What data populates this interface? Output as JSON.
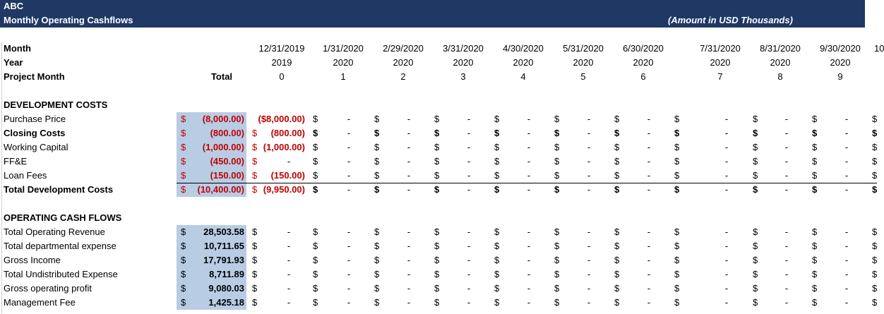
{
  "header": {
    "company": "ABC",
    "title": "Monthly Operating Cashflows",
    "units": "(Amount in USD Thousands)"
  },
  "symbols": {
    "currency": "$",
    "nil": "-"
  },
  "table": {
    "row_labels": [
      "Month",
      "Year",
      "Project Month"
    ],
    "total_label": "Total",
    "columns": [
      {
        "month": "12/31/2019",
        "year": 2019,
        "project_month": 0
      },
      {
        "month": "1/31/2020",
        "year": 2020,
        "project_month": 1
      },
      {
        "month": "2/29/2020",
        "year": 2020,
        "project_month": 2
      },
      {
        "month": "3/31/2020",
        "year": 2020,
        "project_month": 3
      },
      {
        "month": "4/30/2020",
        "year": 2020,
        "project_month": 4
      },
      {
        "month": "5/31/2020",
        "year": 2020,
        "project_month": 5
      },
      {
        "month": "6/30/2020",
        "year": 2020,
        "project_month": 6
      },
      {
        "month": "7/31/2020",
        "year": 2020,
        "project_month": 7
      },
      {
        "month": "8/31/2020",
        "year": 2020,
        "project_month": 8
      },
      {
        "month": "9/30/2020",
        "year": 2020,
        "project_month": 9
      },
      {
        "month": "10"
      }
    ],
    "sections": [
      {
        "title": "DEVELOPMENT COSTS",
        "value_color": "#c00000",
        "rows": [
          {
            "label": "Purchase Price",
            "total": [
              "$",
              "(8,000.00)"
            ],
            "first": [
              "($8,000.00)"
            ]
          },
          {
            "label": "Closing Costs",
            "bold": true,
            "total": [
              "$",
              "(800.00)"
            ],
            "first": [
              "$",
              "(800.00)"
            ]
          },
          {
            "label": "Working Capital",
            "total": [
              "$",
              "(1,000.00)"
            ],
            "first": [
              "$",
              "(1,000.00)"
            ]
          },
          {
            "label": "FF&E",
            "total": [
              "$",
              "(450.00)"
            ],
            "first": [
              "$",
              "-"
            ]
          },
          {
            "label": "Loan Fees",
            "total": [
              "$",
              "(150.00)"
            ],
            "first": [
              "$",
              "(150.00)"
            ]
          },
          {
            "label": "Total Development Costs",
            "bold": true,
            "rule_above": true,
            "total": [
              "$",
              "(10,400.00)"
            ],
            "first": [
              "$",
              "(9,950.00)"
            ]
          }
        ]
      },
      {
        "title": "OPERATING CASH FLOWS",
        "value_color": "#000000",
        "rows": [
          {
            "label": "Total Operating Revenue",
            "total": [
              "$",
              "28,503.58"
            ],
            "first": [
              "$",
              "-"
            ]
          },
          {
            "label": "Total departmental expense",
            "total": [
              "$",
              "10,711.65"
            ],
            "first": [
              "$",
              "-"
            ]
          },
          {
            "label": "Gross Income",
            "total": [
              "$",
              "17,791.93"
            ],
            "first": [
              "$",
              "-"
            ]
          },
          {
            "label": "Total Undistributed Expense",
            "total": [
              "$",
              "8,711.89"
            ],
            "first": [
              "$",
              "-"
            ]
          },
          {
            "label": "Gross operating profit",
            "total": [
              "$",
              "9,080.03"
            ],
            "first": [
              "$",
              "-"
            ]
          },
          {
            "label": "Management Fee",
            "total": [
              "$",
              "1,425.18"
            ],
            "first": [
              "$",
              "-"
            ]
          }
        ]
      }
    ]
  }
}
